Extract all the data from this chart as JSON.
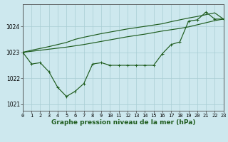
{
  "title": "Graphe pression niveau de la mer (hPa)",
  "bg_color": "#cde8ee",
  "grid_color": "#a8cdd4",
  "line_color": "#1e5c1e",
  "x_values": [
    0,
    1,
    2,
    3,
    4,
    5,
    6,
    7,
    8,
    9,
    10,
    11,
    12,
    13,
    14,
    15,
    16,
    17,
    18,
    19,
    20,
    21,
    22,
    23
  ],
  "series1": [
    1023.0,
    1022.55,
    1022.6,
    1022.25,
    1021.65,
    1021.3,
    1021.5,
    1021.8,
    1022.55,
    1022.6,
    1022.5,
    1022.5,
    1022.5,
    1022.5,
    1022.5,
    1022.5,
    1022.95,
    1023.3,
    1023.4,
    1024.2,
    1024.25,
    1024.55,
    1024.28,
    1024.28
  ],
  "series2": [
    1023.0,
    1023.08,
    1023.15,
    1023.22,
    1023.3,
    1023.38,
    1023.5,
    1023.58,
    1023.65,
    1023.72,
    1023.78,
    1023.84,
    1023.9,
    1023.95,
    1024.0,
    1024.05,
    1024.1,
    1024.18,
    1024.25,
    1024.32,
    1024.38,
    1024.45,
    1024.52,
    1024.28
  ],
  "series3": [
    1023.0,
    1023.04,
    1023.08,
    1023.12,
    1023.16,
    1023.2,
    1023.25,
    1023.3,
    1023.36,
    1023.42,
    1023.48,
    1023.54,
    1023.6,
    1023.65,
    1023.7,
    1023.76,
    1023.82,
    1023.87,
    1023.92,
    1023.98,
    1024.06,
    1024.14,
    1024.22,
    1024.28
  ],
  "ylim": [
    1020.75,
    1024.85
  ],
  "yticks": [
    1021,
    1022,
    1023,
    1024
  ],
  "xlim": [
    0,
    23
  ],
  "title_fontsize": 6.5,
  "tick_fontsize": 5.0
}
